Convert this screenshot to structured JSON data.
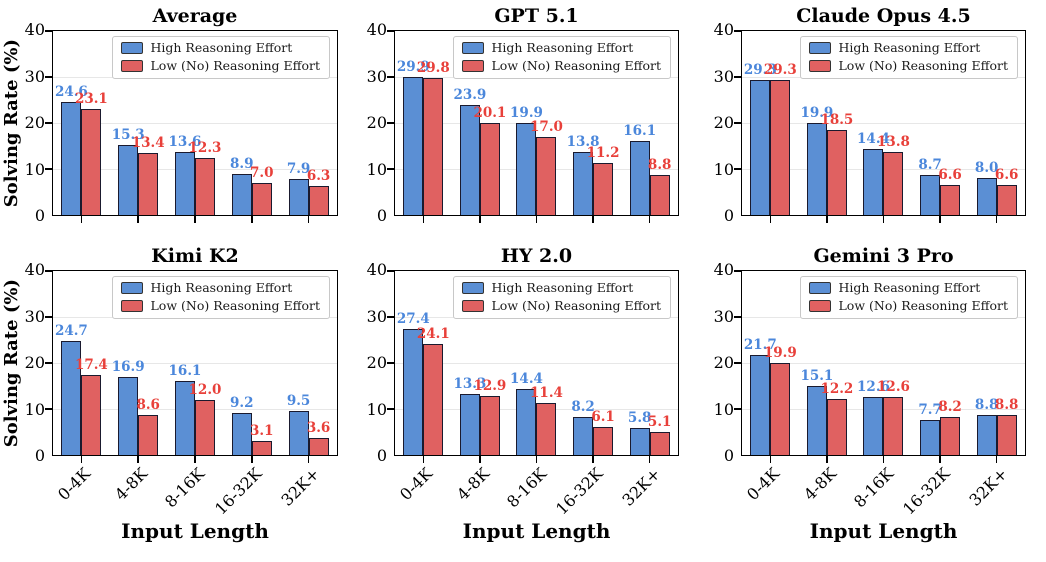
{
  "figure": {
    "ylabel": "Solving Rate (%)",
    "xlabel": "Input Length",
    "categories": [
      "0-4K",
      "4-8K",
      "8-16K",
      "16-32K",
      "32K+"
    ],
    "legend": [
      "High Reasoning Effort",
      "Low (No) Reasoning Effort"
    ],
    "yticks": [
      0,
      10,
      20,
      30,
      40
    ],
    "ylim": [
      0,
      40
    ],
    "colors": {
      "high_bar_fill": "#5B8FD4",
      "low_bar_fill": "#E06161",
      "bar_edge": "#1A1A2E",
      "high_value_label": "#4B87DB",
      "low_value_label": "#E8403A",
      "gridline": "#E7E7E7"
    }
  },
  "chart_data": [
    {
      "type": "bar",
      "title": "Average",
      "categories": [
        "0-4K",
        "4-8K",
        "8-16K",
        "16-32K",
        "32K+"
      ],
      "series": [
        {
          "name": "High Reasoning Effort",
          "values": [
            24.6,
            15.3,
            13.6,
            8.9,
            7.9
          ]
        },
        {
          "name": "Low (No) Reasoning Effort",
          "values": [
            23.1,
            13.4,
            12.3,
            7.0,
            6.3
          ]
        }
      ],
      "ylabel": "Solving Rate (%)",
      "xlabel": "Input Length",
      "ylim": [
        0,
        40
      ],
      "grid": true,
      "legend_position": "upper right"
    },
    {
      "type": "bar",
      "title": "GPT 5.1",
      "categories": [
        "0-4K",
        "4-8K",
        "8-16K",
        "16-32K",
        "32K+"
      ],
      "series": [
        {
          "name": "High Reasoning Effort",
          "values": [
            29.9,
            23.9,
            19.9,
            13.8,
            16.1
          ]
        },
        {
          "name": "Low (No) Reasoning Effort",
          "values": [
            29.8,
            20.1,
            17.0,
            11.2,
            8.8
          ]
        }
      ],
      "ylabel": "Solving Rate (%)",
      "xlabel": "Input Length",
      "ylim": [
        0,
        40
      ],
      "grid": true,
      "legend_position": "upper right"
    },
    {
      "type": "bar",
      "title": "Claude Opus 4.5",
      "categories": [
        "0-4K",
        "4-8K",
        "8-16K",
        "16-32K",
        "32K+"
      ],
      "series": [
        {
          "name": "High Reasoning Effort",
          "values": [
            29.3,
            19.9,
            14.4,
            8.7,
            8.0
          ]
        },
        {
          "name": "Low (No) Reasoning Effort",
          "values": [
            29.3,
            18.5,
            13.8,
            6.6,
            6.6
          ]
        }
      ],
      "ylabel": "Solving Rate (%)",
      "xlabel": "Input Length",
      "ylim": [
        0,
        40
      ],
      "grid": true,
      "legend_position": "upper right"
    },
    {
      "type": "bar",
      "title": "Kimi K2",
      "categories": [
        "0-4K",
        "4-8K",
        "8-16K",
        "16-32K",
        "32K+"
      ],
      "series": [
        {
          "name": "High Reasoning Effort",
          "values": [
            24.7,
            16.9,
            16.1,
            9.2,
            9.5
          ]
        },
        {
          "name": "Low (No) Reasoning Effort",
          "values": [
            17.4,
            8.6,
            12.0,
            3.1,
            3.6
          ]
        }
      ],
      "ylabel": "Solving Rate (%)",
      "xlabel": "Input Length",
      "ylim": [
        0,
        40
      ],
      "grid": true,
      "legend_position": "upper right"
    },
    {
      "type": "bar",
      "title": "HY 2.0",
      "categories": [
        "0-4K",
        "4-8K",
        "8-16K",
        "16-32K",
        "32K+"
      ],
      "series": [
        {
          "name": "High Reasoning Effort",
          "values": [
            27.4,
            13.3,
            14.4,
            8.2,
            5.8
          ]
        },
        {
          "name": "Low (No) Reasoning Effort",
          "values": [
            24.1,
            12.9,
            11.4,
            6.1,
            5.1
          ]
        }
      ],
      "ylabel": "Solving Rate (%)",
      "xlabel": "Input Length",
      "ylim": [
        0,
        40
      ],
      "grid": true,
      "legend_position": "upper right"
    },
    {
      "type": "bar",
      "title": "Gemini 3 Pro",
      "categories": [
        "0-4K",
        "4-8K",
        "8-16K",
        "16-32K",
        "32K+"
      ],
      "series": [
        {
          "name": "High Reasoning Effort",
          "values": [
            21.7,
            15.1,
            12.6,
            7.7,
            8.8
          ]
        },
        {
          "name": "Low (No) Reasoning Effort",
          "values": [
            19.9,
            12.2,
            12.6,
            8.2,
            8.8
          ]
        }
      ],
      "ylabel": "Solving Rate (%)",
      "xlabel": "Input Length",
      "ylim": [
        0,
        40
      ],
      "grid": true,
      "legend_position": "upper right"
    }
  ]
}
